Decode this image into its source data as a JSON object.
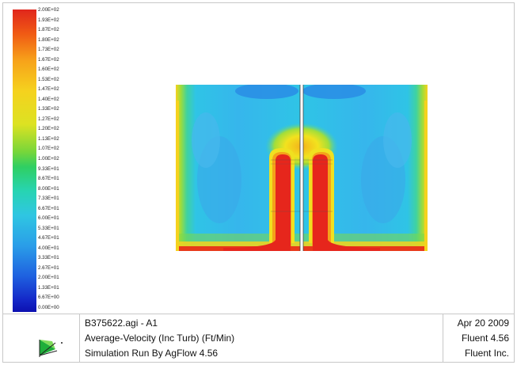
{
  "colorbar": {
    "labels": [
      "2.00E+02",
      "1.93E+02",
      "1.87E+02",
      "1.80E+02",
      "1.73E+02",
      "1.67E+02",
      "1.60E+02",
      "1.53E+02",
      "1.47E+02",
      "1.40E+02",
      "1.33E+02",
      "1.27E+02",
      "1.20E+02",
      "1.13E+02",
      "1.07E+02",
      "1.00E+02",
      "9.33E+01",
      "8.67E+01",
      "8.00E+01",
      "7.33E+01",
      "6.67E+01",
      "6.00E+01",
      "5.33E+01",
      "4.67E+01",
      "4.00E+01",
      "3.33E+01",
      "2.67E+01",
      "2.00E+01",
      "1.33E+01",
      "6.67E+00",
      "0.00E+00"
    ],
    "colors": [
      "#ff0000",
      "#ff2a00",
      "#ff5500",
      "#ff8000",
      "#ffaa00",
      "#ffd400",
      "#ffff00",
      "#d4ff00",
      "#aaff00",
      "#80ff00",
      "#55ff00",
      "#2aff00",
      "#00ff00",
      "#00ff2a",
      "#00ff55",
      "#00ff80",
      "#00ffaa",
      "#00ffd4",
      "#00ffff",
      "#00d4ff",
      "#00aaff",
      "#0080ff",
      "#0055ff",
      "#002aff",
      "#0000ff"
    ]
  },
  "footer": {
    "line1": "B375622.agi - A1",
    "line2": "Average-Velocity (Inc Turb) (Ft/Min)",
    "line3": "Simulation Run By AgFlow 4.56",
    "date": "Apr 20 2009",
    "version": "Fluent 4.56",
    "company": "Fluent Inc."
  }
}
